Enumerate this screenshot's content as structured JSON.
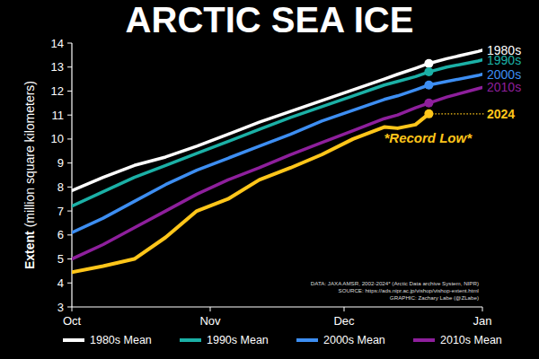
{
  "chart_data": {
    "type": "line",
    "title": "ARCTIC SEA ICE",
    "y_label": "Extent",
    "y_label_unit": "(million square kilometers)",
    "annotation": "*Record Low*",
    "credits": [
      "DATA: JAXA AMSR, 2002-2024* (Arctic Data archive System, NIPR)",
      "SOURCE: https://ads.nipr.ac.jp/vishop/vishop-extent.html",
      "GRAPHIC: Zachary Labe (@ZLabe)"
    ],
    "x": [
      0,
      7,
      14,
      21,
      28,
      35,
      42,
      49,
      56,
      63,
      70,
      73,
      77,
      80,
      84,
      91,
      92
    ],
    "xlim": [
      0,
      92
    ],
    "xticks": [
      {
        "value": 0,
        "label": "Oct"
      },
      {
        "value": 31,
        "label": "Nov"
      },
      {
        "value": 61,
        "label": "Dec"
      },
      {
        "value": 92,
        "label": "Jan"
      }
    ],
    "ylim": [
      3,
      14
    ],
    "yticks": [
      3,
      4,
      5,
      6,
      7,
      8,
      9,
      10,
      11,
      12,
      13,
      14
    ],
    "highlight_x": 80,
    "grid": false,
    "legend": "bottom",
    "series": [
      {
        "name": "1980s Mean",
        "label": "1980s",
        "color": "#ffffff",
        "values": [
          7.85,
          8.4,
          8.9,
          9.25,
          9.7,
          10.2,
          10.7,
          11.15,
          11.6,
          12.05,
          12.5,
          12.7,
          12.95,
          13.15,
          13.35,
          13.65,
          13.7
        ]
      },
      {
        "name": "1990s Mean",
        "label": "1990s",
        "color": "#1bb0a6",
        "values": [
          7.2,
          7.8,
          8.4,
          8.9,
          9.4,
          9.9,
          10.4,
          10.9,
          11.35,
          11.8,
          12.25,
          12.4,
          12.6,
          12.8,
          13.0,
          13.25,
          13.3
        ]
      },
      {
        "name": "2000s Mean",
        "label": "2000s",
        "color": "#3d8ef2",
        "values": [
          6.1,
          6.7,
          7.4,
          8.1,
          8.7,
          9.2,
          9.7,
          10.2,
          10.75,
          11.2,
          11.65,
          11.8,
          12.05,
          12.25,
          12.4,
          12.65,
          12.7
        ]
      },
      {
        "name": "2010s Mean",
        "label": "2010s",
        "color": "#8e1f9c",
        "values": [
          5.0,
          5.6,
          6.3,
          7.0,
          7.7,
          8.3,
          8.8,
          9.35,
          9.85,
          10.35,
          10.85,
          11.0,
          11.3,
          11.5,
          11.75,
          12.1,
          12.15
        ]
      },
      {
        "label": "2024",
        "color": "#ffc61a",
        "values": [
          4.45,
          4.7,
          5.0,
          5.9,
          7.0,
          7.5,
          8.3,
          8.8,
          9.35,
          10.0,
          10.5,
          10.45,
          10.6,
          11.05,
          null,
          null,
          null
        ]
      }
    ]
  }
}
